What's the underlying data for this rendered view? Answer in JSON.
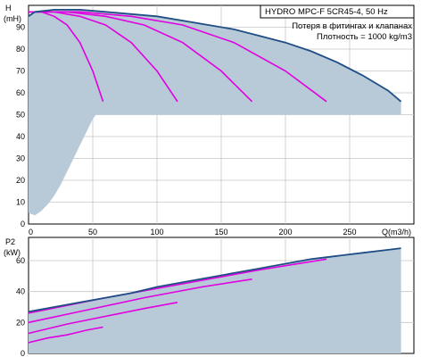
{
  "info": {
    "title": "HYDRO MPC-F 5CR45-4, 50 Hz",
    "line1": "Потеря в фитингах и клапанах",
    "line2": "Плотность = 1000 kg/m3"
  },
  "colors": {
    "system_curve": "#1f4e85",
    "pump_curves": "#e000e0",
    "fill": "#b8c9d8",
    "grid": "#c6c6c6"
  },
  "chart_data": [
    {
      "type": "line",
      "panel": "head",
      "ylabel": "H",
      "yunit": "(mH)",
      "xlabel": "Q(m3/h)",
      "xlim": [
        0,
        300
      ],
      "ylim": [
        0,
        100
      ],
      "xticks": [
        0,
        50,
        100,
        150,
        200,
        250
      ],
      "yticks": [
        0,
        10,
        20,
        30,
        40,
        50,
        60,
        70,
        80,
        90
      ],
      "grid": true,
      "envelope": {
        "x": [
          0,
          5,
          20,
          40,
          60,
          80,
          100,
          120,
          140,
          160,
          180,
          200,
          220,
          240,
          260,
          280,
          290
        ],
        "y": [
          95,
          97,
          98,
          98,
          97,
          96,
          95,
          93,
          91,
          89,
          86,
          83,
          79,
          74,
          68,
          61,
          56
        ]
      },
      "series": [
        {
          "x": [
            0,
            10,
            20,
            30,
            40,
            50,
            58
          ],
          "y": [
            97,
            97,
            95,
            91,
            83,
            70,
            56
          ]
        },
        {
          "x": [
            0,
            20,
            40,
            60,
            80,
            100,
            116
          ],
          "y": [
            97,
            97,
            95,
            91,
            83,
            70,
            56
          ]
        },
        {
          "x": [
            0,
            30,
            60,
            90,
            120,
            150,
            174
          ],
          "y": [
            97,
            97,
            95,
            91,
            83,
            70,
            56
          ]
        },
        {
          "x": [
            0,
            40,
            80,
            120,
            160,
            200,
            232
          ],
          "y": [
            97,
            97,
            95,
            91,
            83,
            70,
            56
          ]
        }
      ],
      "npsh_region": {
        "x": [
          0,
          5,
          10,
          15,
          20,
          25,
          30,
          35,
          40,
          45,
          50,
          55,
          58
        ],
        "y": [
          5,
          4,
          6,
          9,
          13,
          18,
          24,
          30,
          36,
          42,
          48,
          52,
          55
        ]
      }
    },
    {
      "type": "line",
      "panel": "power",
      "ylabel": "P2",
      "yunit": "(kW)",
      "xlim": [
        0,
        300
      ],
      "ylim": [
        0,
        75
      ],
      "yticks": [
        0,
        20,
        40,
        60
      ],
      "grid": true,
      "envelope": {
        "x": [
          0,
          20,
          40,
          60,
          80,
          100,
          120,
          140,
          160,
          180,
          200,
          220,
          240,
          260,
          280,
          290
        ],
        "y": [
          27,
          30,
          33,
          36,
          39,
          43,
          46,
          49,
          52,
          55,
          58,
          61,
          63,
          65,
          67,
          68
        ]
      },
      "series": [
        {
          "x": [
            0,
            15,
            30,
            45,
            58
          ],
          "y": [
            7,
            10,
            12,
            15,
            17
          ]
        },
        {
          "x": [
            0,
            30,
            60,
            90,
            116
          ],
          "y": [
            13,
            19,
            24,
            29,
            33
          ]
        },
        {
          "x": [
            0,
            45,
            90,
            135,
            174
          ],
          "y": [
            20,
            28,
            36,
            43,
            48
          ]
        },
        {
          "x": [
            0,
            60,
            120,
            180,
            232
          ],
          "y": [
            26,
            36,
            45,
            54,
            61
          ]
        }
      ]
    }
  ]
}
